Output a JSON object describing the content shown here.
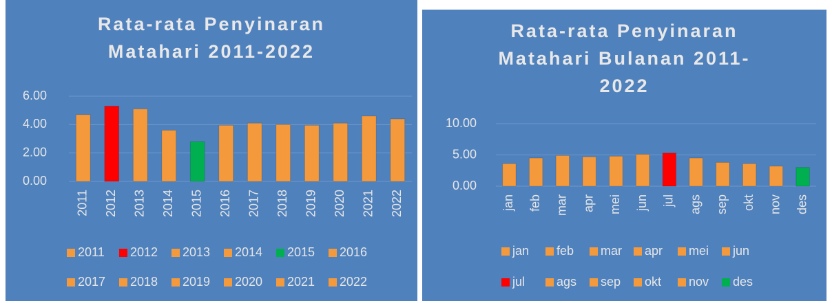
{
  "chart_data": [
    {
      "type": "bar",
      "title": "Rata-rata Penyinaran Matahari 2011-2022",
      "categories": [
        "2011",
        "2012",
        "2013",
        "2014",
        "2015",
        "2016",
        "2017",
        "2018",
        "2019",
        "2020",
        "2021",
        "2022"
      ],
      "values": [
        4.7,
        5.3,
        5.1,
        3.6,
        2.8,
        3.95,
        4.1,
        4.0,
        3.95,
        4.1,
        4.6,
        4.4
      ],
      "colors": [
        "#f59a3c",
        "#ff0000",
        "#f59a3c",
        "#f59a3c",
        "#00b050",
        "#f59a3c",
        "#f59a3c",
        "#f59a3c",
        "#f59a3c",
        "#f59a3c",
        "#f59a3c",
        "#f59a3c"
      ],
      "ylim": [
        0,
        6
      ],
      "yticks": [
        {
          "value": 0,
          "label": "0.00"
        },
        {
          "value": 2,
          "label": "2.00"
        },
        {
          "value": 4,
          "label": "4.00"
        },
        {
          "value": 6,
          "label": "6.00"
        }
      ],
      "grid": true
    },
    {
      "type": "bar",
      "title": "Rata-rata Penyinaran Matahari Bulanan 2011-2022",
      "categories": [
        "jan",
        "feb",
        "mar",
        "apr",
        "mei",
        "jun",
        "jul",
        "ags",
        "sep",
        "okt",
        "nov",
        "des"
      ],
      "values": [
        3.6,
        4.5,
        4.9,
        4.7,
        4.8,
        5.1,
        5.3,
        4.5,
        3.8,
        3.6,
        3.2,
        3.0
      ],
      "colors": [
        "#f59a3c",
        "#f59a3c",
        "#f59a3c",
        "#f59a3c",
        "#f59a3c",
        "#f59a3c",
        "#ff0000",
        "#f59a3c",
        "#f59a3c",
        "#f59a3c",
        "#f59a3c",
        "#00b050"
      ],
      "ylim": [
        0,
        10
      ],
      "yticks": [
        {
          "value": 0,
          "label": "0.00"
        },
        {
          "value": 5,
          "label": "5.00"
        },
        {
          "value": 10,
          "label": "10.00"
        }
      ],
      "grid": true
    }
  ]
}
